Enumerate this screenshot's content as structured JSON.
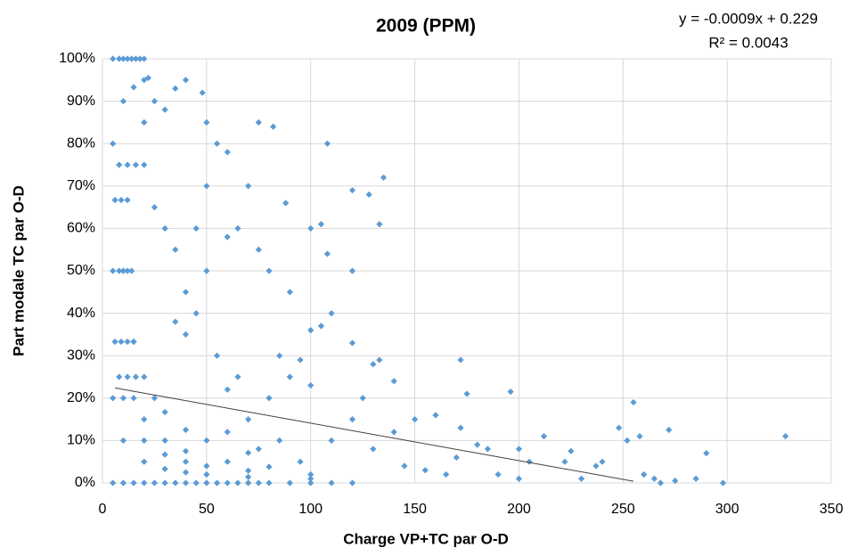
{
  "chart_data": {
    "type": "scatter",
    "title": "2009 (PPM)",
    "annotations": [
      "y = -0.0009x + 0.229",
      "R² = 0.0043"
    ],
    "x_label": "Charge VP+TC par O-D",
    "y_label": "Part modale TC par O-D",
    "color": "#5b9bd5",
    "grid": true,
    "xlim": [
      0,
      350
    ],
    "xticks": [
      0,
      50,
      100,
      150,
      200,
      250,
      300,
      350
    ],
    "ylim": [
      0,
      100
    ],
    "yticks": [
      {
        "value": 0,
        "label": "0%"
      },
      {
        "value": 10,
        "label": "10%"
      },
      {
        "value": 20,
        "label": "20%"
      },
      {
        "value": 30,
        "label": "30%"
      },
      {
        "value": 40,
        "label": "40%"
      },
      {
        "value": 50,
        "label": "50%"
      },
      {
        "value": 60,
        "label": "60%"
      },
      {
        "value": 70,
        "label": "70%"
      },
      {
        "value": 80,
        "label": "80%"
      },
      {
        "value": 90,
        "label": "90%"
      },
      {
        "value": 100,
        "label": "100%"
      }
    ],
    "x": [
      5,
      8,
      10,
      12,
      14,
      16,
      18,
      20,
      5,
      10,
      15,
      20,
      25,
      30,
      35,
      40,
      45,
      50,
      55,
      60,
      65,
      70,
      75,
      80,
      90,
      100,
      110,
      120,
      5,
      10,
      15,
      20,
      22,
      5,
      10,
      20,
      30,
      40,
      50,
      70,
      100,
      10,
      20,
      30,
      40,
      50,
      70,
      100,
      15,
      20,
      30,
      40,
      60,
      80,
      10,
      15,
      20,
      25,
      30,
      40,
      50,
      70,
      5,
      8,
      10,
      12,
      14,
      6,
      9,
      12,
      6,
      9,
      12,
      15,
      8,
      12,
      16,
      8,
      12,
      16,
      20,
      20,
      25,
      30,
      35,
      40,
      48,
      50,
      55,
      60,
      75,
      82,
      108,
      70,
      50,
      88,
      100,
      105,
      120,
      128,
      133,
      135,
      120,
      108,
      80,
      90,
      75,
      65,
      60,
      100,
      110,
      105,
      120,
      130,
      133,
      140,
      95,
      85,
      90,
      100,
      125,
      150,
      160,
      172,
      175,
      172,
      180,
      185,
      196,
      200,
      205,
      212,
      222,
      225,
      230,
      237,
      240,
      248,
      252,
      255,
      258,
      260,
      265,
      268,
      272,
      275,
      285,
      290,
      298,
      328,
      110,
      120,
      130,
      140,
      145,
      155,
      165,
      170,
      190,
      200,
      80,
      70,
      60,
      65,
      55,
      45,
      40,
      35,
      30,
      25,
      45,
      50,
      40,
      35,
      60,
      75,
      85,
      95
    ],
    "values": [
      100,
      100,
      100,
      100,
      100,
      100,
      100,
      100,
      0,
      0,
      0,
      0,
      0,
      0,
      0,
      0,
      0,
      0,
      0,
      0,
      0,
      0,
      0,
      0,
      0,
      0,
      0,
      0,
      80,
      90,
      93.3,
      95,
      95.5,
      20,
      10,
      5,
      3.3,
      2.5,
      2,
      1.4,
      1,
      20,
      10,
      6.7,
      5,
      4,
      2.9,
      2,
      20,
      15,
      10,
      7.5,
      5,
      3.8,
      50,
      33.3,
      25,
      20,
      16.7,
      12.5,
      10,
      7.1,
      50,
      50,
      50,
      50,
      50,
      66.7,
      66.7,
      66.7,
      33.3,
      33.3,
      33.3,
      33.3,
      25,
      25,
      25,
      75,
      75,
      75,
      75,
      85,
      90,
      88,
      93,
      95,
      92,
      85,
      80,
      78,
      85,
      84,
      80,
      70,
      70,
      66,
      60,
      61,
      69,
      68,
      61,
      72,
      50,
      54,
      50,
      45,
      55,
      60,
      58,
      36,
      40,
      37,
      33,
      28,
      29,
      24,
      29,
      30,
      25,
      23,
      20,
      15,
      16,
      29,
      21,
      13,
      9,
      8,
      21.5,
      8,
      5,
      11,
      5,
      7.5,
      1,
      4,
      5,
      13,
      10,
      19,
      11,
      2,
      1,
      0,
      12.5,
      0.5,
      1,
      7,
      0,
      11,
      10,
      15,
      8,
      12,
      4,
      3,
      2,
      6,
      2,
      1,
      20,
      15,
      22,
      25,
      30,
      40,
      45,
      55,
      60,
      65,
      60,
      50,
      35,
      38,
      12,
      8,
      10,
      5
    ],
    "trendline": {
      "x": [
        6,
        255
      ],
      "values": [
        22.4,
        0.4
      ],
      "color": "#404040"
    }
  }
}
